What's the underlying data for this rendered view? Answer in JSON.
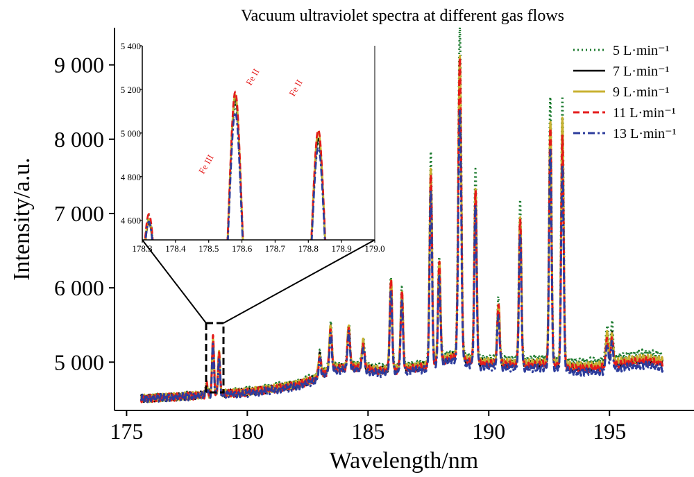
{
  "chart_data": [
    {
      "type": "line",
      "title": "Vacuum ultraviolet spectra at different gas flows",
      "xlabel": "Wavelength/nm",
      "ylabel": "Intensity/a.u.",
      "xlim": [
        174.5,
        198.5
      ],
      "ylim": [
        4350,
        9500
      ],
      "xticks": [
        175,
        180,
        185,
        190,
        195
      ],
      "xtick_labels": [
        "175",
        "180",
        "185",
        "190",
        "195"
      ],
      "yticks": [
        5000,
        6000,
        7000,
        8000,
        9000
      ],
      "ytick_labels": [
        "5 000",
        "6 000",
        "7 000",
        "8 000",
        "9 000"
      ],
      "legend_position": "top-right",
      "grid": false,
      "baseline": {
        "x": [
          175.6,
          177,
          178,
          179,
          180,
          181,
          182,
          182.8,
          183.5,
          184.5,
          185.5,
          186.5,
          187.5,
          188.5,
          189.5,
          190.5,
          191.5,
          192.5,
          193.5,
          194.5,
          195.5,
          196.5,
          197.2
        ],
        "y": [
          4510,
          4530,
          4550,
          4570,
          4590,
          4630,
          4680,
          4760,
          4900,
          4920,
          4870,
          4890,
          4930,
          5050,
          4970,
          4960,
          4940,
          4960,
          4900,
          4900,
          4960,
          5000,
          4960
        ]
      },
      "peaks": {
        "x": [
          178.32,
          178.58,
          178.83,
          183.0,
          183.45,
          184.2,
          184.8,
          185.95,
          186.4,
          187.6,
          187.95,
          188.8,
          189.45,
          190.4,
          191.3,
          192.55,
          193.05,
          194.9,
          195.1
        ],
        "width": [
          0.04,
          0.04,
          0.04,
          0.05,
          0.05,
          0.05,
          0.05,
          0.05,
          0.05,
          0.05,
          0.05,
          0.06,
          0.05,
          0.05,
          0.05,
          0.05,
          0.05,
          0.05,
          0.05
        ],
        "height": [
          130,
          750,
          560,
          280,
          580,
          560,
          350,
          1200,
          1050,
          2650,
          1350,
          3950,
          2350,
          800,
          2000,
          3250,
          3300,
          400,
          400
        ]
      },
      "series": [
        {
          "name": "5 L·min⁻¹",
          "color": "#1b7a2e",
          "dash": "2,4",
          "width": 3,
          "offset": 130,
          "scale": [
            1.05,
            0.93,
            0.91,
            1.0,
            1.0,
            1.0,
            1.0,
            1.0,
            1.0,
            1.05,
            1.0,
            1.12,
            1.08,
            1.0,
            1.05,
            1.08,
            1.08,
            1.2,
            1.2
          ]
        },
        {
          "name": "7 L·min⁻¹",
          "color": "#000000",
          "dash": "",
          "width": 2.5,
          "offset": 40,
          "scale": [
            0.75,
            0.97,
            0.94,
            1.0,
            0.95,
            0.95,
            0.95,
            0.95,
            0.95,
            0.97,
            0.95,
            1.0,
            0.95,
            0.95,
            0.95,
            0.97,
            0.95,
            1.0,
            1.0
          ]
        },
        {
          "name": "9 L·min⁻¹",
          "color": "#c8b131",
          "dash": "",
          "width": 3,
          "offset": 60,
          "scale": [
            0.9,
            1.0,
            1.0,
            1.0,
            1.0,
            1.0,
            1.0,
            1.0,
            1.0,
            1.0,
            1.0,
            1.03,
            1.0,
            1.0,
            1.0,
            1.0,
            1.0,
            1.0,
            1.0
          ]
        },
        {
          "name": "11 L·min⁻¹",
          "color": "#e41b1b",
          "dash": "9,5",
          "width": 3,
          "offset": 20,
          "scale": [
            1.1,
            1.02,
            1.02,
            1.0,
            0.98,
            0.98,
            0.98,
            0.98,
            0.98,
            0.98,
            0.98,
            1.03,
            0.98,
            0.98,
            0.98,
            0.97,
            0.95,
            0.95,
            0.95
          ]
        },
        {
          "name": "13 L·min⁻¹",
          "color": "#2c3c9c",
          "dash": "10,4,3,4",
          "width": 3,
          "offset": -40,
          "scale": [
            0.8,
            0.88,
            0.86,
            0.9,
            0.88,
            0.88,
            0.88,
            0.9,
            0.88,
            0.9,
            0.88,
            0.85,
            0.9,
            0.88,
            0.9,
            0.9,
            0.85,
            0.9,
            0.9
          ]
        }
      ]
    },
    {
      "type": "line",
      "title": "",
      "xlim": [
        178.3,
        179.0
      ],
      "ylim": [
        4510,
        5400
      ],
      "xticks": [
        178.3,
        178.4,
        178.5,
        178.6,
        178.7,
        178.8,
        178.9,
        179.0
      ],
      "xtick_labels": [
        "178.3",
        "178.4",
        "178.5",
        "178.6",
        "178.7",
        "178.8",
        "178.9",
        "179.0"
      ],
      "yticks": [
        4600,
        4800,
        5000,
        5200,
        5400
      ],
      "ytick_labels": [
        "4 600",
        "4 800",
        "5 000",
        "5 200",
        "5 400"
      ],
      "annotations": [
        {
          "text": "Fe III",
          "x": 178.5,
          "y": 4850
        },
        {
          "text": "Fe II",
          "x": 178.64,
          "y": 5250
        },
        {
          "text": "Fe II",
          "x": 178.77,
          "y": 5200
        }
      ],
      "annotation_color": "#e41b1b"
    }
  ]
}
